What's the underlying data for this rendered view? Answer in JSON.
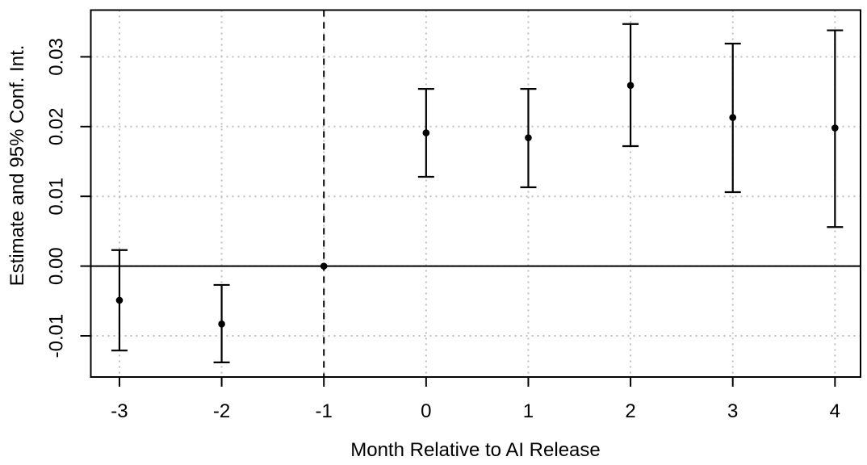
{
  "chart_data": {
    "type": "scatter",
    "subtype": "event-study-errorbar",
    "title": "",
    "xlabel": "Month Relative to AI Release",
    "ylabel": "Estimate and 95% Conf. Int.",
    "points": [
      {
        "month": -3,
        "estimate": -0.0049,
        "ci_low": -0.0121,
        "ci_high": 0.0023
      },
      {
        "month": -2,
        "estimate": -0.0083,
        "ci_low": -0.0138,
        "ci_high": -0.0027
      },
      {
        "month": -1,
        "estimate": 0.0,
        "ci_low": null,
        "ci_high": null
      },
      {
        "month": 0,
        "estimate": 0.0191,
        "ci_low": 0.0128,
        "ci_high": 0.0254
      },
      {
        "month": 1,
        "estimate": 0.0184,
        "ci_low": 0.0113,
        "ci_high": 0.0254
      },
      {
        "month": 2,
        "estimate": 0.0259,
        "ci_low": 0.0172,
        "ci_high": 0.0347
      },
      {
        "month": 3,
        "estimate": 0.0213,
        "ci_low": 0.0106,
        "ci_high": 0.0319
      },
      {
        "month": 4,
        "estimate": 0.0198,
        "ci_low": 0.0056,
        "ci_high": 0.0338
      }
    ],
    "x_ticks": [
      -3,
      -2,
      -1,
      0,
      1,
      2,
      3,
      4
    ],
    "x_tick_labels": [
      "-3",
      "-2",
      "-1",
      "0",
      "1",
      "2",
      "3",
      "4"
    ],
    "y_ticks": [
      -0.01,
      0.0,
      0.01,
      0.02,
      0.03
    ],
    "y_tick_labels": [
      "-0.01",
      "0.00",
      "0.01",
      "0.02",
      "0.03"
    ],
    "xlim": [
      -3.28,
      4.25
    ],
    "ylim": [
      -0.0159,
      0.0367
    ],
    "reference_hline_y": 0,
    "reference_vline_x": -1,
    "grid": true,
    "legend": null,
    "colors": {
      "points": "#000000",
      "errorbars": "#000000",
      "axis": "#000000",
      "grid": "#bfbfbf",
      "background": "#ffffff"
    }
  }
}
